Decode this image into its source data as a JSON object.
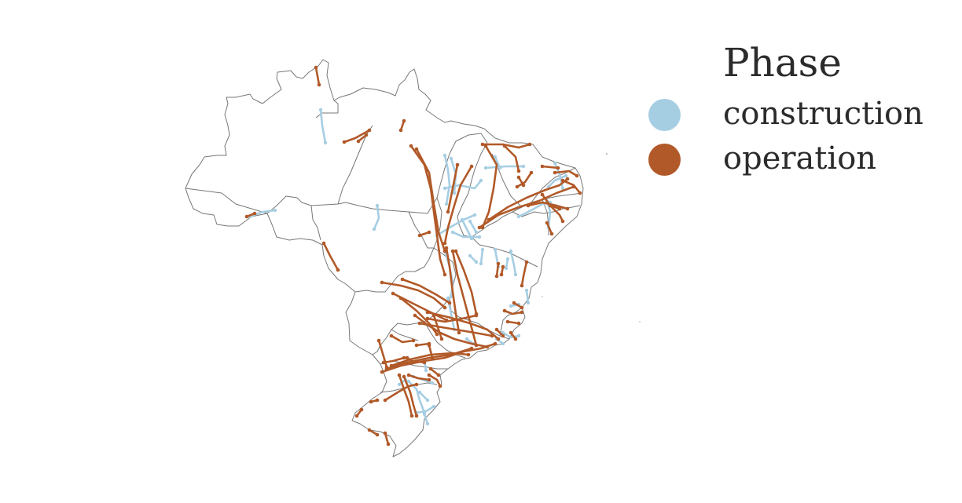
{
  "legend": {
    "title": "Phase",
    "items": [
      {
        "key": "construction",
        "label": "construction",
        "color": "#a6cee3"
      },
      {
        "key": "operation",
        "label": "operation",
        "color": "#b15928"
      }
    ]
  },
  "colors": {
    "border": "#777777",
    "background": "#ffffff"
  }
}
